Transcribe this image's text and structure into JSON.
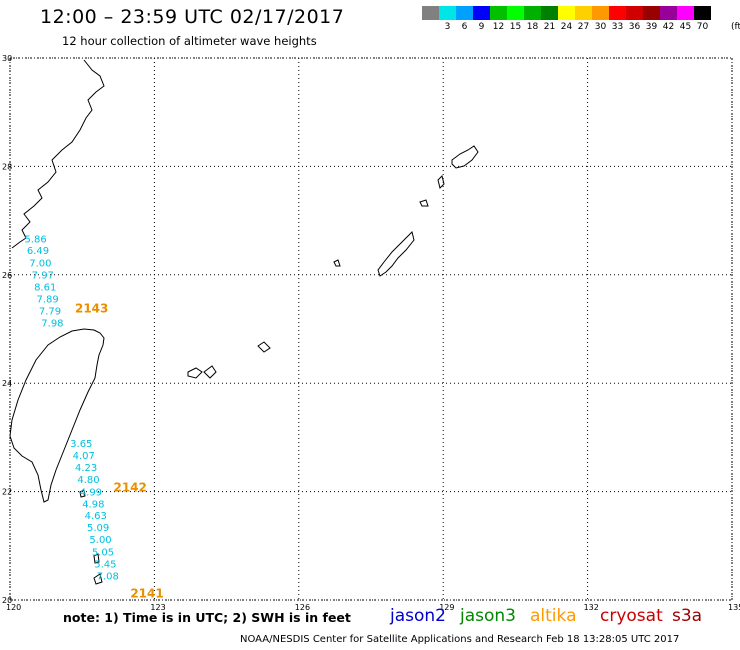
{
  "header": {
    "title": "12:00 – 23:59 UTC 02/17/2017",
    "subtitle": "12 hour collection of altimeter wave heights"
  },
  "color_scale": {
    "unit": "(ft)",
    "bins": [
      {
        "label": "",
        "color": "#808080"
      },
      {
        "label": "3",
        "color": "#00e5e5"
      },
      {
        "label": "6",
        "color": "#00a0ff"
      },
      {
        "label": "9",
        "color": "#0000ff"
      },
      {
        "label": "12",
        "color": "#00c000"
      },
      {
        "label": "15",
        "color": "#00ff00"
      },
      {
        "label": "18",
        "color": "#00b000"
      },
      {
        "label": "21",
        "color": "#008000"
      },
      {
        "label": "24",
        "color": "#ffff00"
      },
      {
        "label": "27",
        "color": "#ffd000"
      },
      {
        "label": "30",
        "color": "#ff9900"
      },
      {
        "label": "33",
        "color": "#ff0000"
      },
      {
        "label": "36",
        "color": "#d00000"
      },
      {
        "label": "39",
        "color": "#990000"
      },
      {
        "label": "42",
        "color": "#990099"
      },
      {
        "label": "45",
        "color": "#ff00ff"
      },
      {
        "label": "70",
        "color": "#000000"
      }
    ]
  },
  "map": {
    "latitudes": [
      "20",
      "22",
      "24",
      "26",
      "28",
      "30"
    ],
    "longitudes": [
      "120",
      "123",
      "126",
      "129",
      "132",
      "135"
    ],
    "lon_range": [
      120,
      135
    ],
    "lat_range": [
      20,
      30
    ],
    "grid": "dotted",
    "passes": [
      {
        "id": "2143",
        "color": "#e89000",
        "lon": 121.35,
        "lat": 25.3
      },
      {
        "id": "2142",
        "color": "#e89000",
        "lon": 122.15,
        "lat": 22.0
      },
      {
        "id": "2141",
        "color": "#e89000",
        "lon": 122.5,
        "lat": 20.05
      }
    ],
    "swh_tracks": [
      {
        "color": "#00c0e0",
        "points": [
          {
            "lon": 120.3,
            "lat": 26.6,
            "swh": "5.86"
          },
          {
            "lon": 120.35,
            "lat": 26.38,
            "swh": "6.49"
          },
          {
            "lon": 120.4,
            "lat": 26.15,
            "swh": "7.00"
          },
          {
            "lon": 120.45,
            "lat": 25.93,
            "swh": "7.97"
          },
          {
            "lon": 120.5,
            "lat": 25.71,
            "swh": "8.61"
          },
          {
            "lon": 120.55,
            "lat": 25.49,
            "swh": "7.89"
          },
          {
            "lon": 120.6,
            "lat": 25.27,
            "swh": "7.79"
          },
          {
            "lon": 120.65,
            "lat": 25.05,
            "swh": "7.98"
          }
        ]
      },
      {
        "color": "#00c0e0",
        "points": [
          {
            "lon": 121.25,
            "lat": 22.82,
            "swh": "3.65"
          },
          {
            "lon": 121.3,
            "lat": 22.6,
            "swh": "4.07"
          },
          {
            "lon": 121.35,
            "lat": 22.38,
            "swh": "4.23"
          },
          {
            "lon": 121.4,
            "lat": 22.16,
            "swh": "4.80"
          },
          {
            "lon": 121.45,
            "lat": 21.93,
            "swh": "4.99"
          },
          {
            "lon": 121.5,
            "lat": 21.71,
            "swh": "4.98"
          },
          {
            "lon": 121.55,
            "lat": 21.49,
            "swh": "4.63"
          },
          {
            "lon": 121.6,
            "lat": 21.27,
            "swh": "5.09"
          },
          {
            "lon": 121.65,
            "lat": 21.05,
            "swh": "5.00"
          },
          {
            "lon": 121.7,
            "lat": 20.82,
            "swh": "5.05"
          },
          {
            "lon": 121.75,
            "lat": 20.6,
            "swh": "5.45"
          },
          {
            "lon": 121.8,
            "lat": 20.38,
            "swh": "7.08"
          }
        ]
      }
    ]
  },
  "footer": {
    "note": "note:  1) Time is in UTC;  2) SWH is in feet",
    "satellites": [
      {
        "name": "jason2",
        "color": "#0000cc"
      },
      {
        "name": "jason3",
        "color": "#008800"
      },
      {
        "name": "altika",
        "color": "#ff9900"
      },
      {
        "name": "cryosat",
        "color": "#cc0000"
      },
      {
        "name": "s3a",
        "color": "#990000"
      }
    ],
    "credit": "NOAA/NESDIS Center for Satellite Applications and Research     Feb 18 13:28:05 UTC 2017"
  }
}
